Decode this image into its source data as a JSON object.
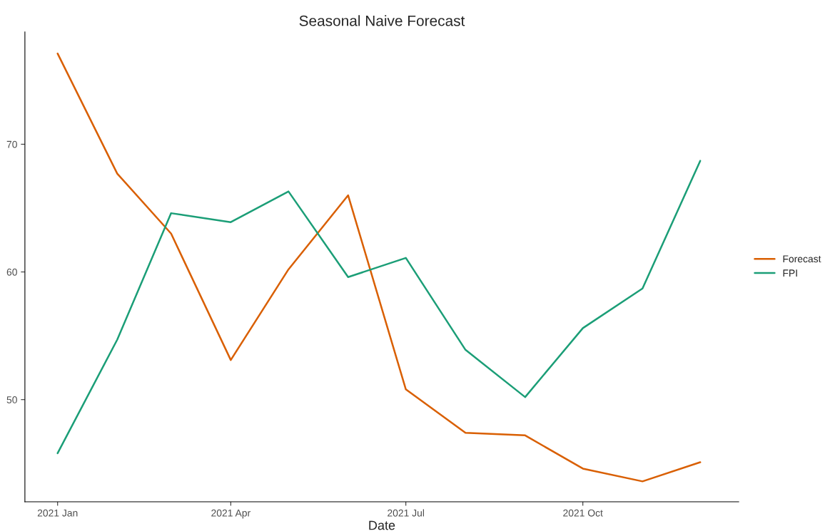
{
  "chart_data": {
    "type": "line",
    "title": "Seasonal Naive Forecast",
    "xlabel": "Date",
    "x": [
      "2021-01-01",
      "2021-02-01",
      "2021-03-01",
      "2021-04-01",
      "2021-05-01",
      "2021-06-01",
      "2021-07-01",
      "2021-08-01",
      "2021-09-01",
      "2021-10-01",
      "2021-11-01",
      "2021-12-01"
    ],
    "series": [
      {
        "name": "Forecast",
        "color": "#d95f02",
        "values": [
          77.1,
          67.7,
          63.0,
          53.1,
          60.2,
          66.0,
          50.8,
          47.4,
          47.2,
          44.6,
          43.6,
          45.1
        ]
      },
      {
        "name": "FPI",
        "color": "#1b9e77",
        "values": [
          45.8,
          54.7,
          64.6,
          63.9,
          66.3,
          59.6,
          61.1,
          53.9,
          50.2,
          55.6,
          58.7,
          68.7
        ]
      }
    ],
    "xlim": [
      "2020-12-15",
      "2021-12-21"
    ],
    "xticks": [
      {
        "value": "2021-01-01",
        "label": "2021 Jan"
      },
      {
        "value": "2021-04-01",
        "label": "2021 Apr"
      },
      {
        "value": "2021-07-01",
        "label": "2021 Jul"
      },
      {
        "value": "2021-10-01",
        "label": "2021 Oct"
      }
    ],
    "ylim": [
      42.0,
      78.8
    ],
    "yticks": [
      50,
      60,
      70
    ],
    "grid": false,
    "legend": "right",
    "marker": "none",
    "line_style": "solid"
  }
}
